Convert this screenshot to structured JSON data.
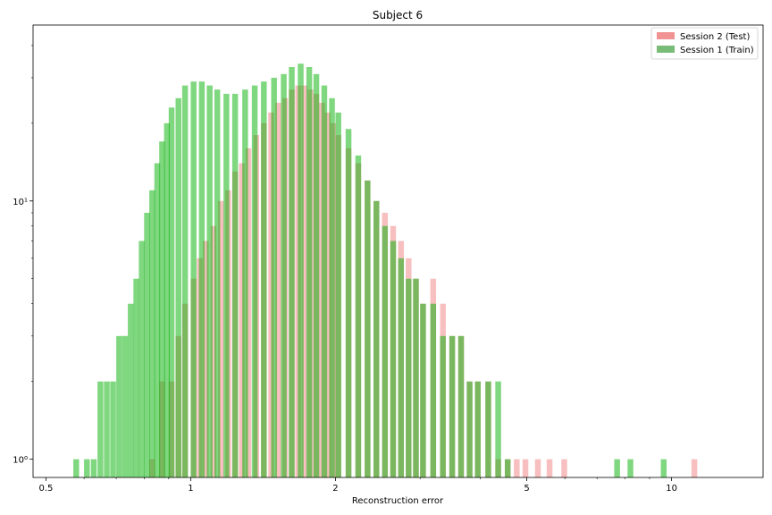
{
  "chart_data": {
    "type": "histogram",
    "title": "Subject 6",
    "xlabel": "Reconstruction error",
    "ylabel": "",
    "xscale": "log",
    "yscale": "log",
    "xlim": [
      0.47,
      15.5
    ],
    "ylim": [
      0.85,
      48
    ],
    "x_ticks": [
      {
        "value": 0.5,
        "label": "0.5"
      },
      {
        "value": 1,
        "label": "1"
      },
      {
        "value": 2,
        "label": "2"
      },
      {
        "value": 5,
        "label": "5"
      },
      {
        "value": 10,
        "label": "10"
      }
    ],
    "y_ticks": [
      {
        "value": 1,
        "label": "10⁰"
      },
      {
        "value": 10,
        "label": "10¹"
      }
    ],
    "legend_position": "top-right",
    "series": [
      {
        "name": "Session 2 (Test)",
        "color": "#f08080",
        "alpha": 0.5,
        "bins": [
          [
            0.82,
            1
          ],
          [
            0.86,
            2
          ],
          [
            0.9,
            2
          ],
          [
            0.93,
            3
          ],
          [
            0.96,
            4
          ],
          [
            1.0,
            5
          ],
          [
            1.03,
            6
          ],
          [
            1.06,
            7
          ],
          [
            1.1,
            8
          ],
          [
            1.14,
            10
          ],
          [
            1.18,
            11
          ],
          [
            1.22,
            13
          ],
          [
            1.26,
            14
          ],
          [
            1.3,
            16
          ],
          [
            1.35,
            18
          ],
          [
            1.4,
            20
          ],
          [
            1.45,
            22
          ],
          [
            1.5,
            24
          ],
          [
            1.55,
            25
          ],
          [
            1.6,
            27
          ],
          [
            1.65,
            28
          ],
          [
            1.7,
            28
          ],
          [
            1.75,
            27
          ],
          [
            1.8,
            26
          ],
          [
            1.85,
            24
          ],
          [
            1.9,
            22
          ],
          [
            1.95,
            20
          ],
          [
            2.0,
            18
          ],
          [
            2.1,
            16
          ],
          [
            2.2,
            14
          ],
          [
            2.3,
            12
          ],
          [
            2.4,
            10
          ],
          [
            2.5,
            9
          ],
          [
            2.6,
            8
          ],
          [
            2.7,
            7
          ],
          [
            2.8,
            6
          ],
          [
            2.9,
            5
          ],
          [
            3.0,
            4
          ],
          [
            3.15,
            5
          ],
          [
            3.3,
            4
          ],
          [
            3.45,
            3
          ],
          [
            3.6,
            3
          ],
          [
            3.75,
            2
          ],
          [
            3.9,
            2
          ],
          [
            4.1,
            2
          ],
          [
            4.3,
            1
          ],
          [
            4.5,
            1
          ],
          [
            4.7,
            1
          ],
          [
            4.9,
            1
          ],
          [
            5.2,
            1
          ],
          [
            5.5,
            1
          ],
          [
            5.9,
            1
          ],
          [
            11.0,
            1
          ]
        ]
      },
      {
        "name": "Session 1 (Train)",
        "color": "#00b000",
        "alpha": 0.5,
        "bins": [
          [
            0.57,
            1
          ],
          [
            0.6,
            1
          ],
          [
            0.62,
            1
          ],
          [
            0.64,
            2
          ],
          [
            0.66,
            2
          ],
          [
            0.68,
            2
          ],
          [
            0.7,
            3
          ],
          [
            0.72,
            3
          ],
          [
            0.74,
            4
          ],
          [
            0.76,
            5
          ],
          [
            0.78,
            7
          ],
          [
            0.8,
            9
          ],
          [
            0.82,
            11
          ],
          [
            0.84,
            14
          ],
          [
            0.86,
            17
          ],
          [
            0.88,
            20
          ],
          [
            0.9,
            23
          ],
          [
            0.93,
            25
          ],
          [
            0.96,
            28
          ],
          [
            1.0,
            29
          ],
          [
            1.04,
            29
          ],
          [
            1.08,
            28
          ],
          [
            1.12,
            27
          ],
          [
            1.17,
            26
          ],
          [
            1.22,
            26
          ],
          [
            1.28,
            27
          ],
          [
            1.34,
            28
          ],
          [
            1.4,
            29
          ],
          [
            1.47,
            30
          ],
          [
            1.54,
            31
          ],
          [
            1.6,
            33
          ],
          [
            1.67,
            34
          ],
          [
            1.74,
            33
          ],
          [
            1.8,
            31
          ],
          [
            1.87,
            28
          ],
          [
            1.94,
            25
          ],
          [
            2.0,
            22
          ],
          [
            2.1,
            19
          ],
          [
            2.2,
            15
          ],
          [
            2.3,
            12
          ],
          [
            2.4,
            10
          ],
          [
            2.5,
            8
          ],
          [
            2.6,
            7
          ],
          [
            2.7,
            6
          ],
          [
            2.8,
            5
          ],
          [
            2.9,
            5
          ],
          [
            3.0,
            4
          ],
          [
            3.15,
            4
          ],
          [
            3.3,
            3
          ],
          [
            3.45,
            3
          ],
          [
            3.6,
            3
          ],
          [
            3.75,
            2
          ],
          [
            3.9,
            2
          ],
          [
            4.1,
            2
          ],
          [
            4.3,
            2
          ],
          [
            4.5,
            1
          ],
          [
            7.6,
            1
          ],
          [
            8.1,
            1
          ],
          [
            9.5,
            1
          ]
        ]
      }
    ]
  }
}
